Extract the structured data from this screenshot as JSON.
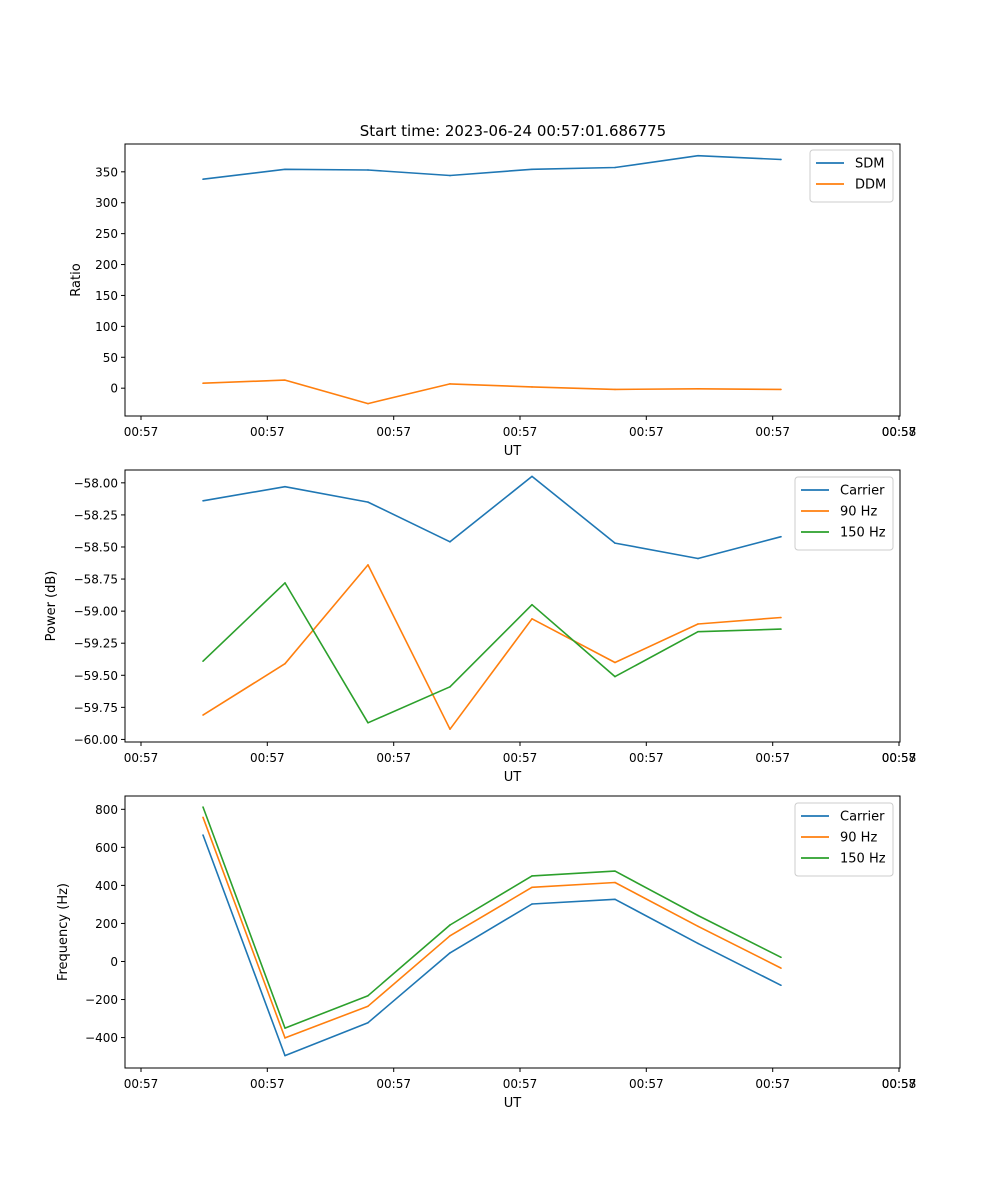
{
  "figure": {
    "title": "Start time: 2023-06-24 00:57:01.686775"
  },
  "chart_data": [
    {
      "type": "line",
      "xlabel": "UT",
      "ylabel": "Ratio",
      "x_tick_labels": [
        "00:57",
        "00:57",
        "00:57",
        "00:57",
        "00:57",
        "00:57",
        "00:57",
        "00:58"
      ],
      "ylim": [
        -45,
        395
      ],
      "yticks": [
        0,
        50,
        100,
        150,
        200,
        250,
        300,
        350
      ],
      "legend_position": "top-right",
      "grid": false,
      "series": [
        {
          "name": "SDM",
          "color": "#1f77b4",
          "values": [
            338,
            354,
            353,
            344,
            354,
            357,
            376,
            370
          ]
        },
        {
          "name": "DDM",
          "color": "#ff7f0e",
          "values": [
            8,
            13,
            -25,
            7,
            2,
            -2,
            -1,
            -2
          ]
        }
      ]
    },
    {
      "type": "line",
      "xlabel": "UT",
      "ylabel": "Power (dB)",
      "x_tick_labels": [
        "00:57",
        "00:57",
        "00:57",
        "00:57",
        "00:57",
        "00:57",
        "00:57",
        "00:58"
      ],
      "ylim": [
        -60.02,
        -57.9
      ],
      "yticks": [
        -60.0,
        -59.75,
        -59.5,
        -59.25,
        -59.0,
        -58.75,
        -58.5,
        -58.25,
        -58.0
      ],
      "legend_position": "top-right",
      "grid": false,
      "series": [
        {
          "name": "Carrier",
          "color": "#1f77b4",
          "values": [
            -58.14,
            -58.03,
            -58.15,
            -58.46,
            -57.95,
            -58.47,
            -58.59,
            -58.42
          ]
        },
        {
          "name": "90 Hz",
          "color": "#ff7f0e",
          "values": [
            -59.81,
            -59.41,
            -58.64,
            -59.92,
            -59.06,
            -59.4,
            -59.1,
            -59.05
          ]
        },
        {
          "name": "150 Hz",
          "color": "#2ca02c",
          "values": [
            -59.39,
            -58.78,
            -59.87,
            -59.59,
            -58.95,
            -59.51,
            -59.16,
            -59.14
          ]
        }
      ]
    },
    {
      "type": "line",
      "xlabel": "UT",
      "ylabel": "Frequency (Hz)",
      "x_tick_labels": [
        "00:57",
        "00:57",
        "00:57",
        "00:57",
        "00:57",
        "00:57",
        "00:57",
        "00:58"
      ],
      "ylim": [
        -560,
        870
      ],
      "yticks": [
        -400,
        -200,
        0,
        200,
        400,
        600,
        800
      ],
      "legend_position": "top-right",
      "grid": false,
      "series": [
        {
          "name": "Carrier",
          "color": "#1f77b4",
          "values": [
            665,
            -495,
            -322,
            45,
            302,
            327,
            95,
            -125
          ]
        },
        {
          "name": "90 Hz",
          "color": "#ff7f0e",
          "values": [
            758,
            -402,
            -235,
            135,
            390,
            415,
            185,
            -35
          ]
        },
        {
          "name": "150 Hz",
          "color": "#2ca02c",
          "values": [
            812,
            -350,
            -180,
            192,
            450,
            475,
            242,
            22
          ]
        }
      ]
    }
  ]
}
